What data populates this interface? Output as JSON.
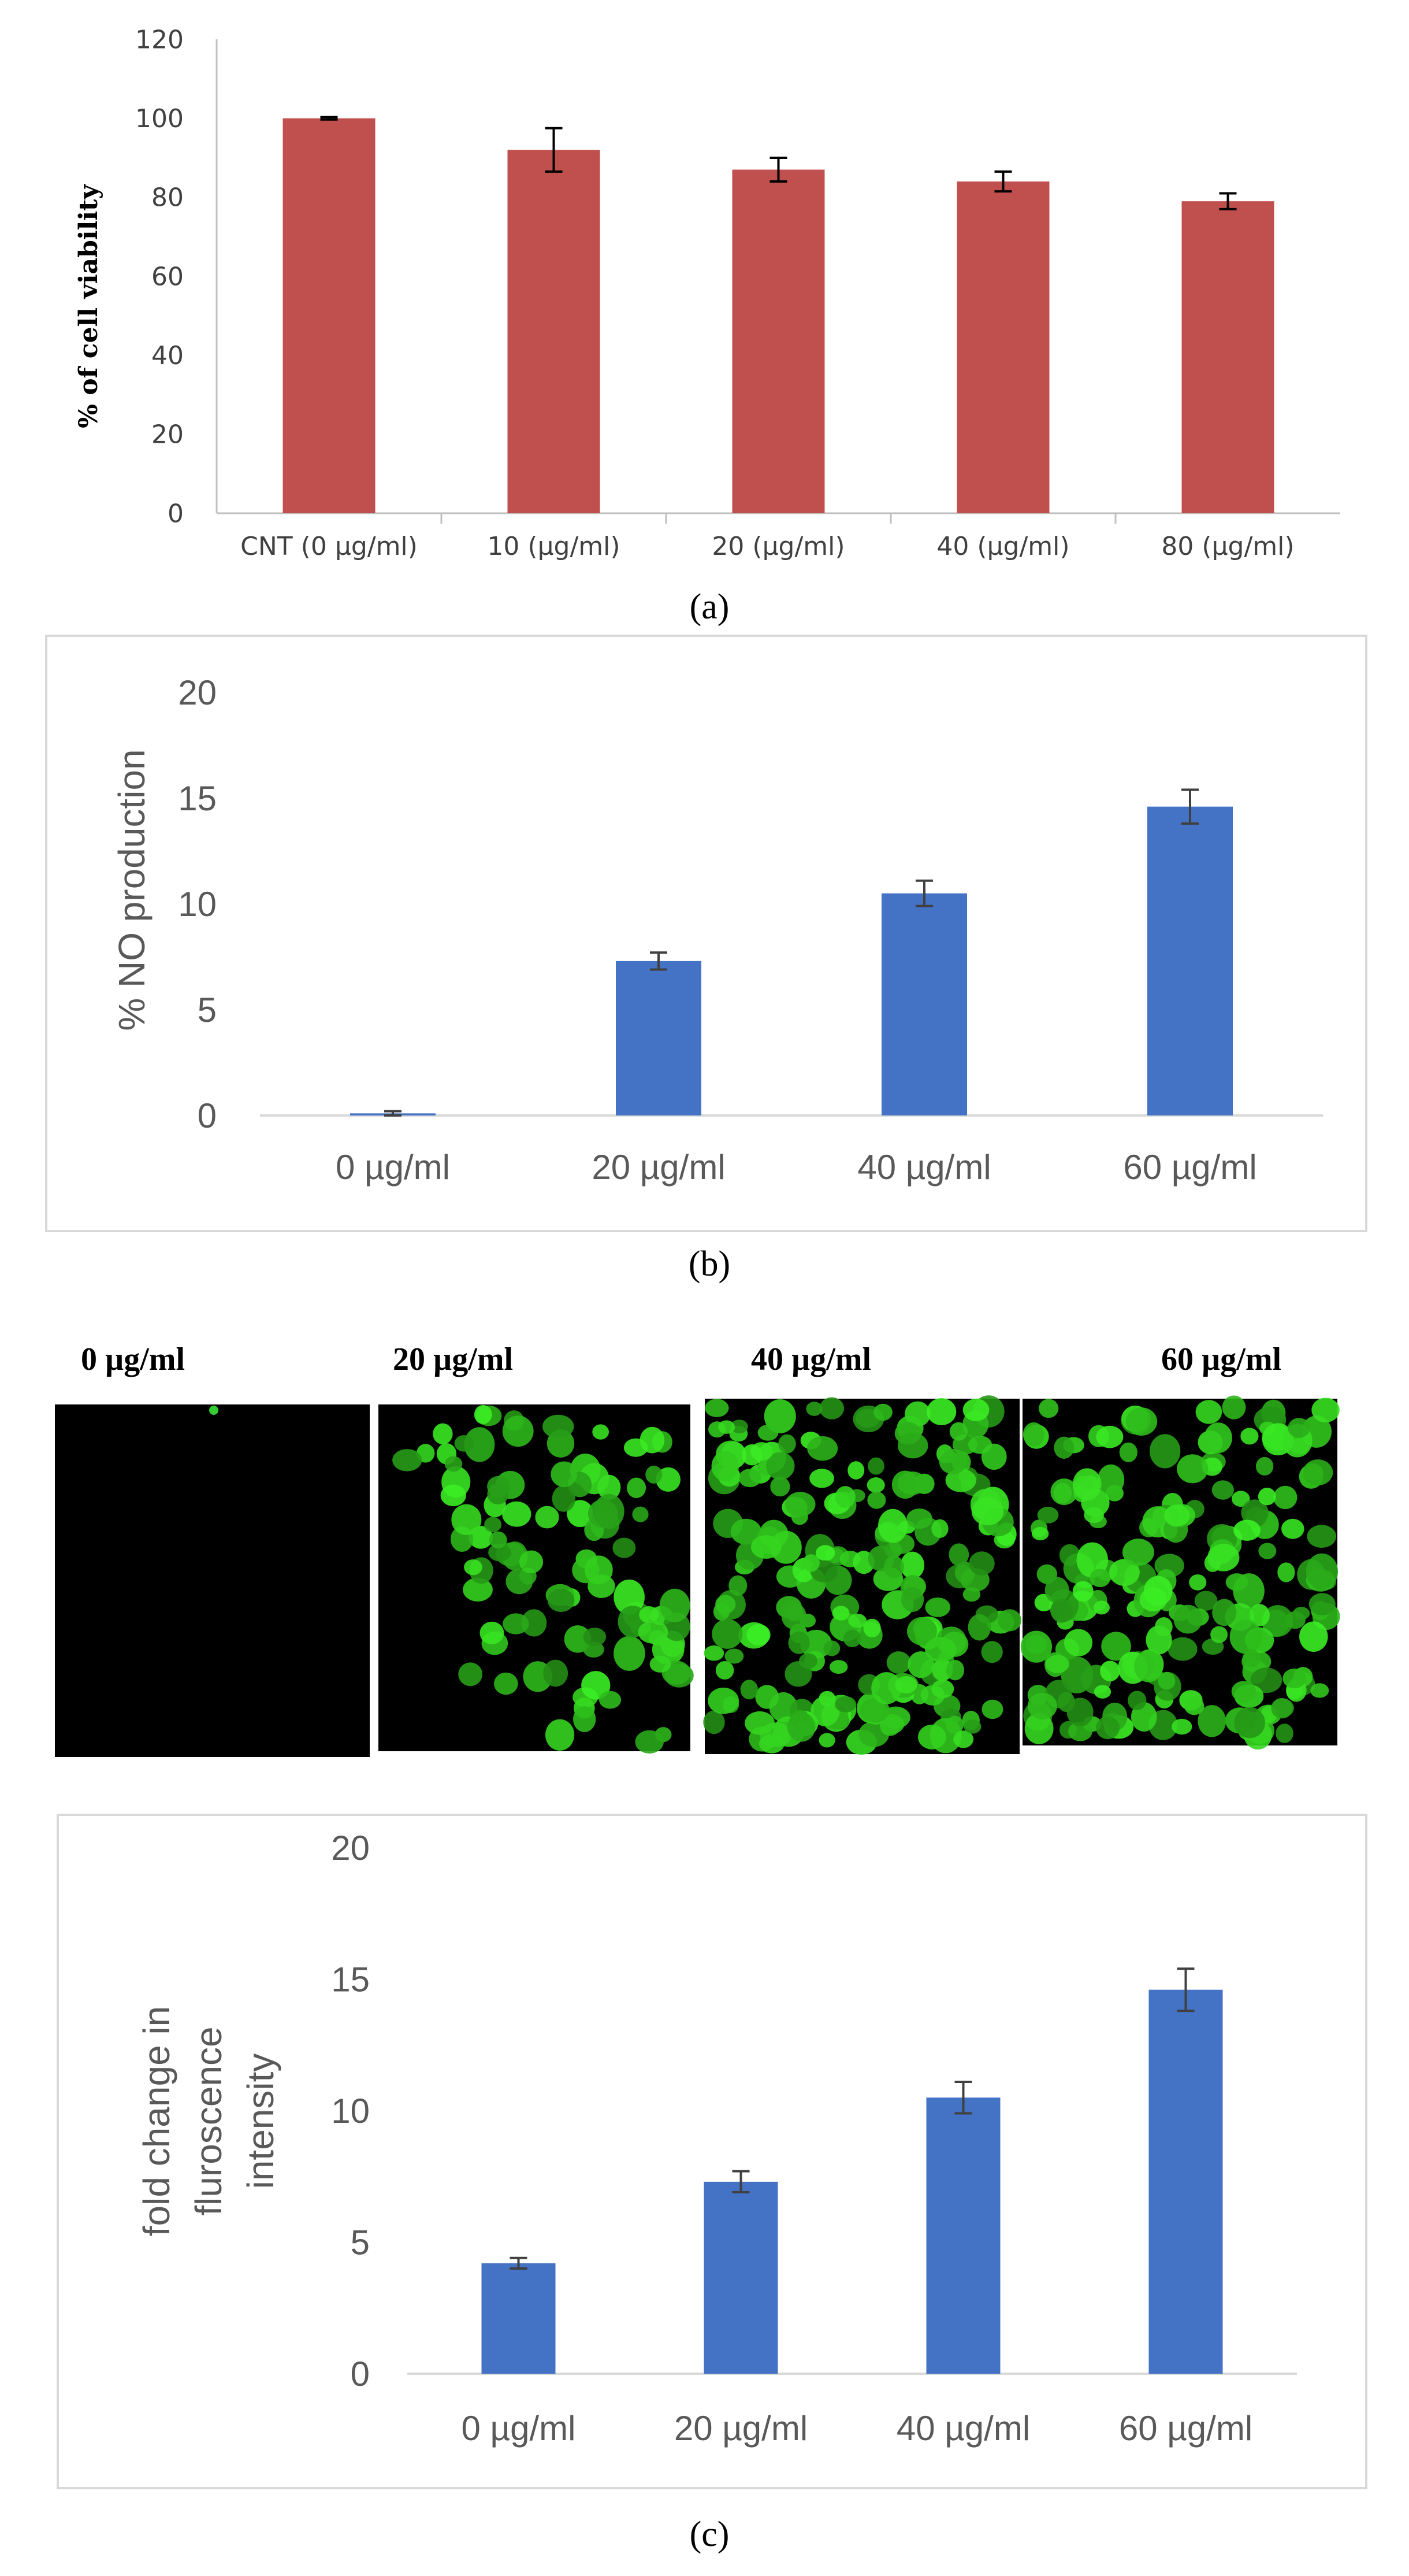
{
  "panel_labels": [
    "(a)",
    "(b)",
    "(c)"
  ],
  "chart_data": [
    {
      "id": "a",
      "type": "bar",
      "categories": [
        "CNT (0 µg/ml)",
        "10 (µg/ml)",
        "20 (µg/ml)",
        "40 (µg/ml)",
        "80 (µg/ml)"
      ],
      "values": [
        100,
        92,
        87,
        84,
        79
      ],
      "errors": [
        0.3,
        5.5,
        3,
        2.5,
        2
      ],
      "ylabel": "% of cell viability",
      "ylim": [
        0,
        120
      ],
      "yticks": [
        0,
        20,
        40,
        60,
        80,
        100,
        120
      ],
      "bar_color": "#C0504D",
      "grid": false
    },
    {
      "id": "b",
      "type": "bar",
      "categories": [
        "0 µg/ml",
        "20 µg/ml",
        "40 µg/ml",
        "60 µg/ml"
      ],
      "values": [
        0.1,
        7.3,
        10.5,
        14.6
      ],
      "errors": [
        0.1,
        0.4,
        0.6,
        0.8
      ],
      "ylabel": "% NO production",
      "ylim": [
        0,
        20
      ],
      "yticks": [
        0,
        5,
        10,
        15,
        20
      ],
      "bar_color": "#4472C4",
      "grid": false
    },
    {
      "id": "c",
      "type": "bar",
      "categories": [
        "0 µg/ml",
        "20 µg/ml",
        "40 µg/ml",
        "60 µg/ml"
      ],
      "values": [
        4.2,
        7.3,
        10.5,
        14.6
      ],
      "errors": [
        0.2,
        0.4,
        0.6,
        0.8
      ],
      "ylabel_lines": [
        "fold change in",
        "fluroscence",
        "intensity"
      ],
      "ylim": [
        0,
        20
      ],
      "yticks": [
        0,
        5,
        10,
        15,
        20
      ],
      "bar_color": "#4472C4",
      "grid": false
    }
  ],
  "micrographs": {
    "labels": [
      "0 µg/ml",
      "20 µg/ml",
      "40 µg/ml",
      "60 µg/ml"
    ],
    "density": [
      0,
      0.55,
      0.95,
      0.9
    ]
  }
}
